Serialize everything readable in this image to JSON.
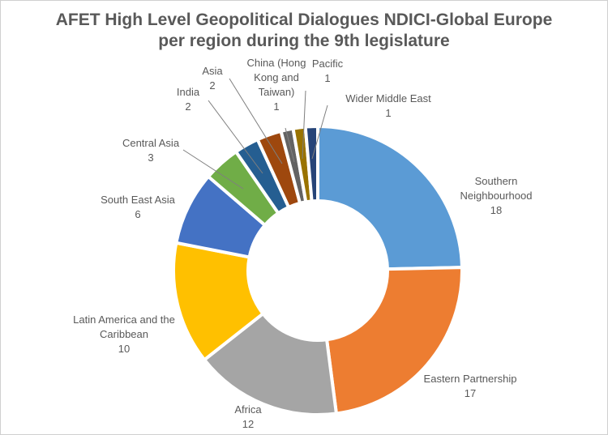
{
  "chart_data": {
    "type": "pie",
    "donut": true,
    "title_lines": [
      "AFET High Level Geopolitical Dialogues NDICI-Global Europe",
      "per region during the 9th legislature"
    ],
    "slices": [
      {
        "label_lines": [
          "Southern",
          "Neighbourhood"
        ],
        "value": 18,
        "value_text": "18",
        "color": "#5B9BD5"
      },
      {
        "label_lines": [
          "Eastern Partnership"
        ],
        "value": 17,
        "value_text": "17",
        "color": "#ED7D31"
      },
      {
        "label_lines": [
          "Africa"
        ],
        "value": 12,
        "value_text": "12",
        "color": "#A5A5A5"
      },
      {
        "label_lines": [
          "Latin America and the",
          "Caribbean"
        ],
        "value": 10,
        "value_text": "10",
        "color": "#FFC000"
      },
      {
        "label_lines": [
          "South East Asia"
        ],
        "value": 6,
        "value_text": "6",
        "color": "#4472C4"
      },
      {
        "label_lines": [
          "Central Asia"
        ],
        "value": 3,
        "value_text": "3",
        "color": "#70AD47"
      },
      {
        "label_lines": [
          "India"
        ],
        "value": 2,
        "value_text": "2",
        "color": "#255E91"
      },
      {
        "label_lines": [
          "Asia"
        ],
        "value": 2,
        "value_text": "2",
        "color": "#9E480E"
      },
      {
        "label_lines": [
          "China (Hong",
          "Kong and",
          "Taiwan)"
        ],
        "value": 1,
        "value_text": "1",
        "color": "#636363"
      },
      {
        "label_lines": [
          "Pacific"
        ],
        "value": 1,
        "value_text": "1",
        "color": "#997300"
      },
      {
        "label_lines": [
          "Wider Middle East"
        ],
        "value": 1,
        "value_text": "1",
        "color": "#264478"
      }
    ]
  }
}
